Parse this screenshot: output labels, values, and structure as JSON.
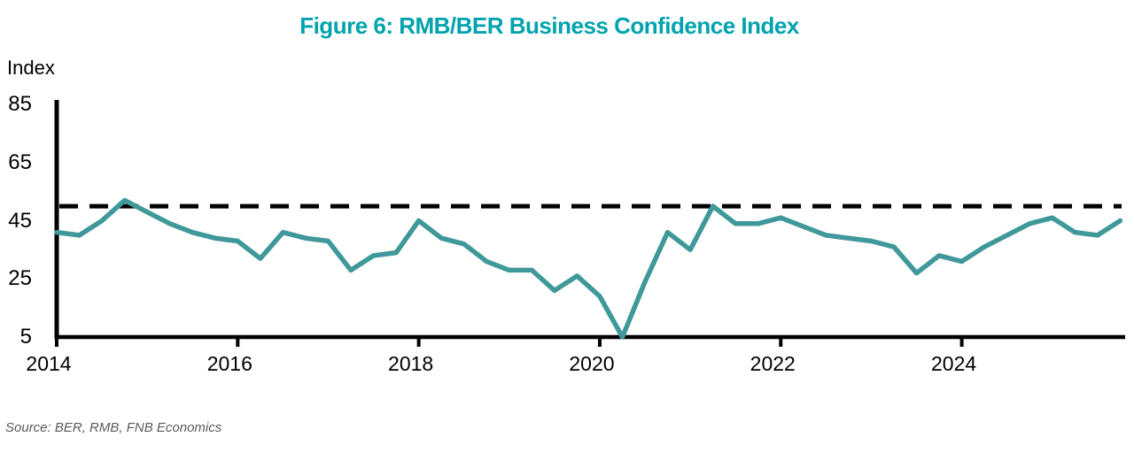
{
  "title": "Figure 6: RMB/BER Business Confidence Index",
  "y_axis_title": "Index",
  "source_note": "Source: BER, RMB, FNB Economics",
  "colors": {
    "title": "#00A3AD",
    "line": "#3F9899",
    "axis": "#000000",
    "reference_line": "#000000",
    "source_text": "#58595B"
  },
  "chart_data": {
    "type": "line",
    "title": "Figure 6: RMB/BER Business Confidence Index",
    "xlabel": "",
    "ylabel": "Index",
    "ylim": [
      5,
      85
    ],
    "y_ticks": [
      85,
      65,
      45,
      25,
      5
    ],
    "x_tick_years": [
      "2014",
      "2016",
      "2018",
      "2020",
      "2022",
      "2024"
    ],
    "grid": false,
    "legend_position": "none",
    "frequency": "quarterly",
    "reference_line": {
      "value": 50,
      "style": "dashed"
    },
    "categories": [
      "2014Q1",
      "2014Q2",
      "2014Q3",
      "2014Q4",
      "2015Q1",
      "2015Q2",
      "2015Q3",
      "2015Q4",
      "2016Q1",
      "2016Q2",
      "2016Q3",
      "2016Q4",
      "2017Q1",
      "2017Q2",
      "2017Q3",
      "2017Q4",
      "2018Q1",
      "2018Q2",
      "2018Q3",
      "2018Q4",
      "2019Q1",
      "2019Q2",
      "2019Q3",
      "2019Q4",
      "2020Q1",
      "2020Q2",
      "2020Q3",
      "2020Q4",
      "2021Q1",
      "2021Q2",
      "2021Q3",
      "2021Q4",
      "2022Q1",
      "2022Q2",
      "2022Q3",
      "2022Q4",
      "2023Q1",
      "2023Q2",
      "2023Q3",
      "2023Q4",
      "2024Q1",
      "2024Q2",
      "2024Q3",
      "2024Q4",
      "2025Q1",
      "2025Q2",
      "2025Q3",
      "2025Q4"
    ],
    "series": [
      {
        "name": "RMB/BER Business Confidence Index",
        "values": [
          41,
          40,
          45,
          52,
          48,
          44,
          41,
          39,
          38,
          32,
          41,
          39,
          38,
          28,
          33,
          34,
          45,
          39,
          37,
          31,
          28,
          28,
          21,
          26,
          19,
          5,
          24,
          41,
          35,
          50,
          44,
          44,
          46,
          43,
          40,
          39,
          38,
          36,
          27,
          33,
          31,
          36,
          40,
          44,
          46,
          41,
          40,
          45
        ]
      }
    ]
  }
}
